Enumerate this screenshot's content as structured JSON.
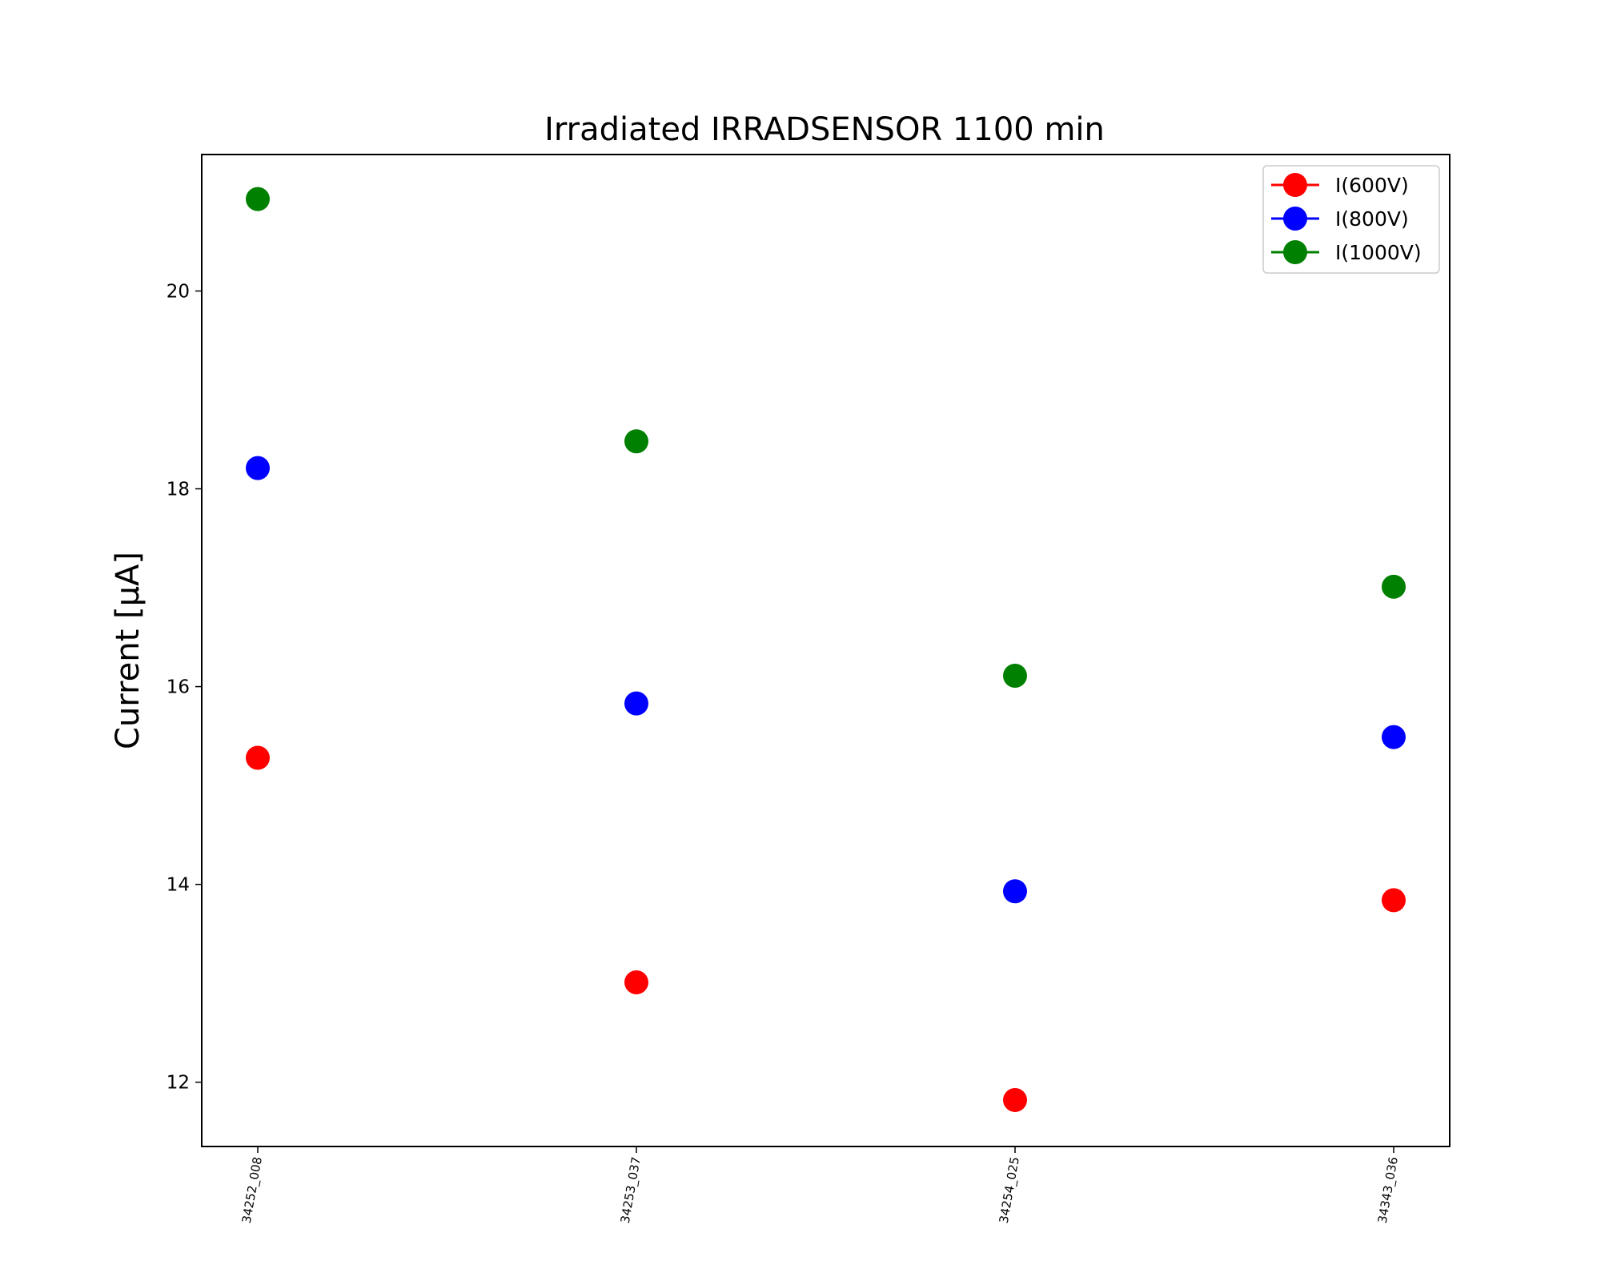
{
  "chart_data": {
    "type": "scatter",
    "title": "Irradiated IRRADSENSOR 1100 min",
    "xlabel": "",
    "ylabel": "Current [μA]",
    "categories": [
      "34252_008",
      "34253_037",
      "34254_025",
      "34343_036"
    ],
    "ylim": [
      11.35,
      21.38
    ],
    "yticks": [
      12,
      14,
      16,
      18,
      20
    ],
    "legend_position": "top-right",
    "grid": false,
    "series": [
      {
        "name": "I(600V)",
        "color": "#ff0000",
        "values": [
          15.28,
          13.01,
          11.82,
          13.84
        ]
      },
      {
        "name": "I(800V)",
        "color": "#0000ff",
        "values": [
          18.21,
          15.83,
          13.93,
          15.49
        ]
      },
      {
        "name": "I(1000V)",
        "color": "#008000",
        "values": [
          20.93,
          18.48,
          16.11,
          17.01
        ]
      }
    ]
  }
}
